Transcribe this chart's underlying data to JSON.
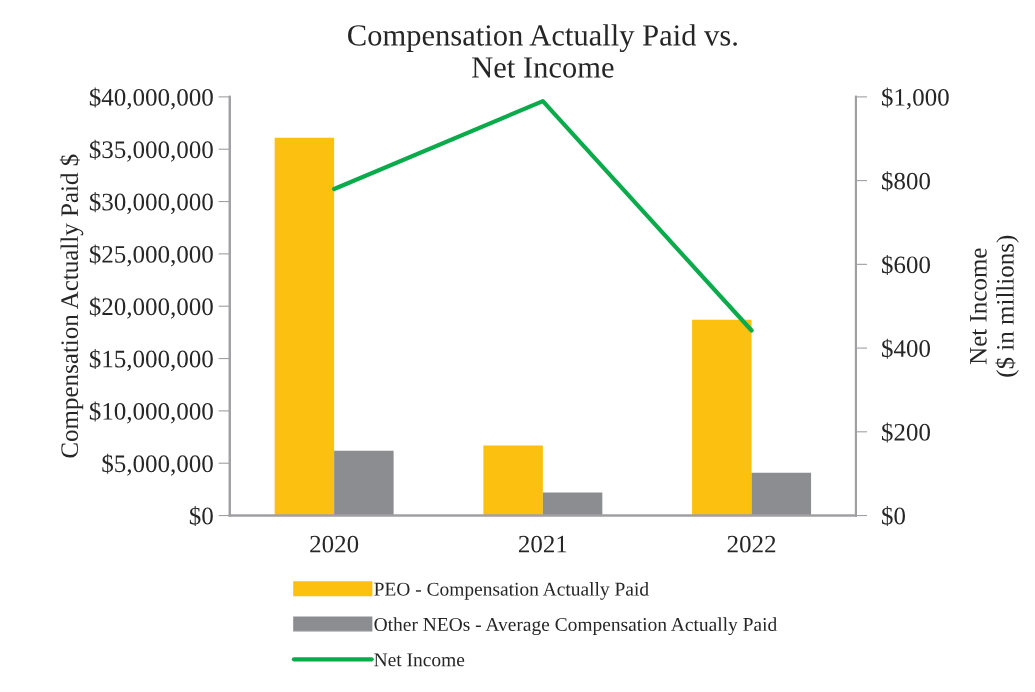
{
  "chart_data": {
    "type": "bar",
    "title": "Compensation Actually Paid vs.\nNet Income",
    "ylabel": "Compensation Actually Paid $",
    "y2label": "Net Income\n($ in millions)",
    "categories": [
      "2020",
      "2021",
      "2022"
    ],
    "series": [
      {
        "name": "PEO - Compensation Actually Paid",
        "color": "#fcc010",
        "values": [
          36100000,
          6700000,
          18700000
        ]
      },
      {
        "name": "Other NEOs - Average Compensation Actually Paid",
        "color": "#8c8d90",
        "values": [
          6200000,
          2200000,
          4100000
        ]
      },
      {
        "name": "Net Income",
        "type": "line",
        "axis": "y2",
        "color": "#0aab4b",
        "values": [
          780,
          990,
          442
        ]
      }
    ],
    "ylim": [
      0,
      40000000
    ],
    "yticks": [
      {
        "value": 0,
        "label": "$0"
      },
      {
        "value": 5000000,
        "label": "$5,000,000"
      },
      {
        "value": 10000000,
        "label": "$10,000,000"
      },
      {
        "value": 15000000,
        "label": "$15,000,000"
      },
      {
        "value": 20000000,
        "label": "$20,000,000"
      },
      {
        "value": 25000000,
        "label": "$25,000,000"
      },
      {
        "value": 30000000,
        "label": "$30,000,000"
      },
      {
        "value": 35000000,
        "label": "$35,000,000"
      },
      {
        "value": 40000000,
        "label": "$40,000,000"
      }
    ],
    "y2lim": [
      0,
      1000
    ],
    "y2ticks": [
      {
        "value": 0,
        "label": "$0"
      },
      {
        "value": 200,
        "label": "$200"
      },
      {
        "value": 400,
        "label": "$400"
      },
      {
        "value": 600,
        "label": "$600"
      },
      {
        "value": 800,
        "label": "$800"
      },
      {
        "value": 1000,
        "label": "$1,000"
      }
    ],
    "grid": false,
    "legend": "bottom",
    "marker": "none",
    "line_style": "solid"
  }
}
